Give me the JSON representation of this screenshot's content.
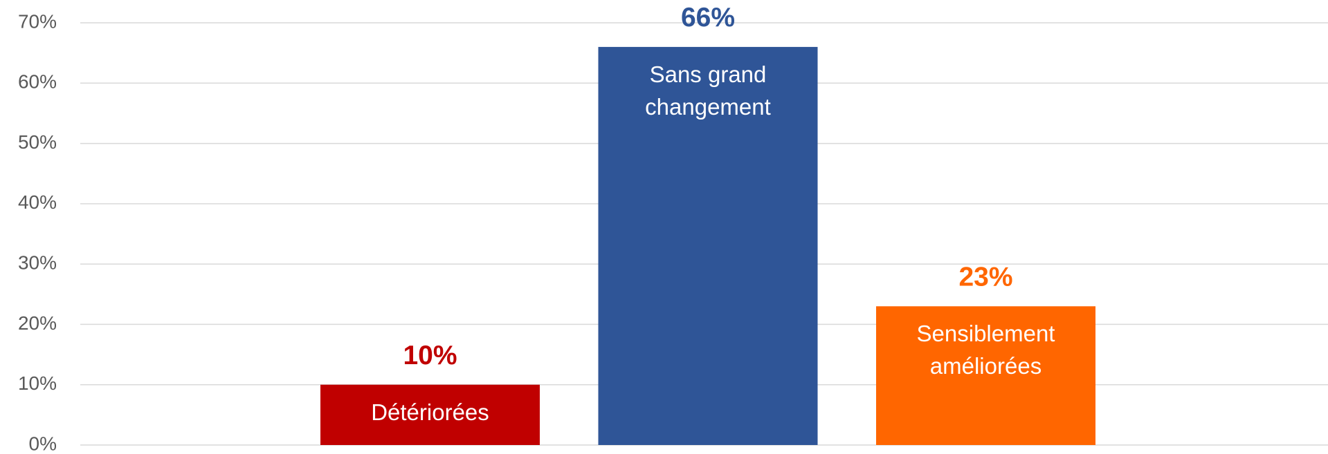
{
  "chart_data": {
    "type": "bar",
    "categories": [
      "Détériorées",
      "Sans grand changement",
      "Sensiblement améliorées"
    ],
    "values": [
      10,
      66,
      23
    ],
    "value_labels": [
      "10%",
      "66%",
      "23%"
    ],
    "colors": [
      "#c00000",
      "#2f5597",
      "#ff6600"
    ],
    "ylim": [
      0,
      70
    ],
    "yticks": [
      {
        "value": 0,
        "label": "0%"
      },
      {
        "value": 10,
        "label": "10%"
      },
      {
        "value": 20,
        "label": "20%"
      },
      {
        "value": 30,
        "label": "30%"
      },
      {
        "value": 40,
        "label": "40%"
      },
      {
        "value": 50,
        "label": "50%"
      },
      {
        "value": 60,
        "label": "60%"
      },
      {
        "value": 70,
        "label": "70%"
      }
    ],
    "grid": true
  }
}
